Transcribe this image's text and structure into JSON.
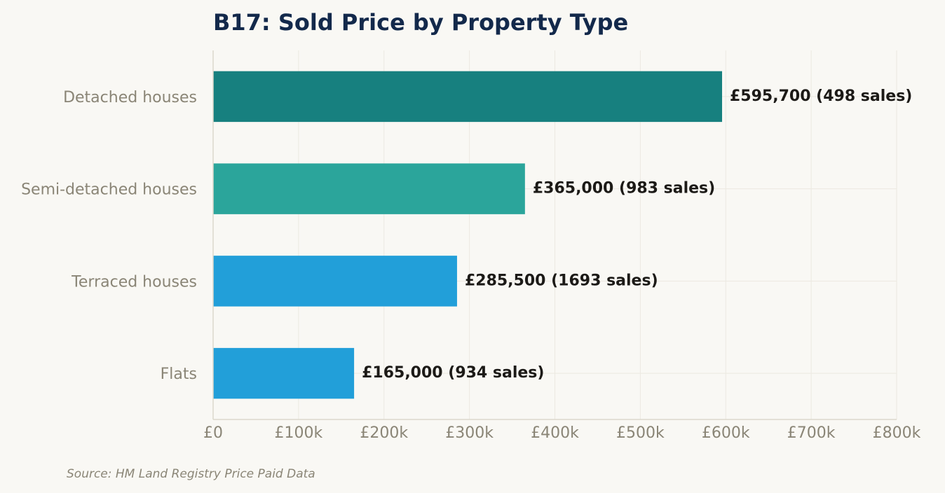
{
  "chart_data": {
    "type": "bar",
    "orientation": "horizontal",
    "title": "B17: Sold Price by Property Type",
    "categories": [
      "Detached houses",
      "Semi-detached houses",
      "Terraced houses",
      "Flats"
    ],
    "values": [
      595700,
      365000,
      285500,
      165000
    ],
    "sales": [
      498,
      983,
      1693,
      934
    ],
    "data_labels": [
      "£595,700  (498 sales)",
      "£365,000  (983 sales)",
      "£285,500  (1693 sales)",
      "£165,000  (934 sales)"
    ],
    "bar_colors": [
      "#17807f",
      "#2ba59b",
      "#229fd9",
      "#229fd9"
    ],
    "x_ticks": [
      0,
      100000,
      200000,
      300000,
      400000,
      500000,
      600000,
      700000,
      800000
    ],
    "x_tick_labels": [
      "£0",
      "£100k",
      "£200k",
      "£300k",
      "£400k",
      "£500k",
      "£600k",
      "£700k",
      "£800k"
    ],
    "xlim": [
      0,
      800000
    ],
    "xlabel": "",
    "ylabel": "",
    "grid": true,
    "source": "Source: HM Land Registry Price Paid Data"
  }
}
